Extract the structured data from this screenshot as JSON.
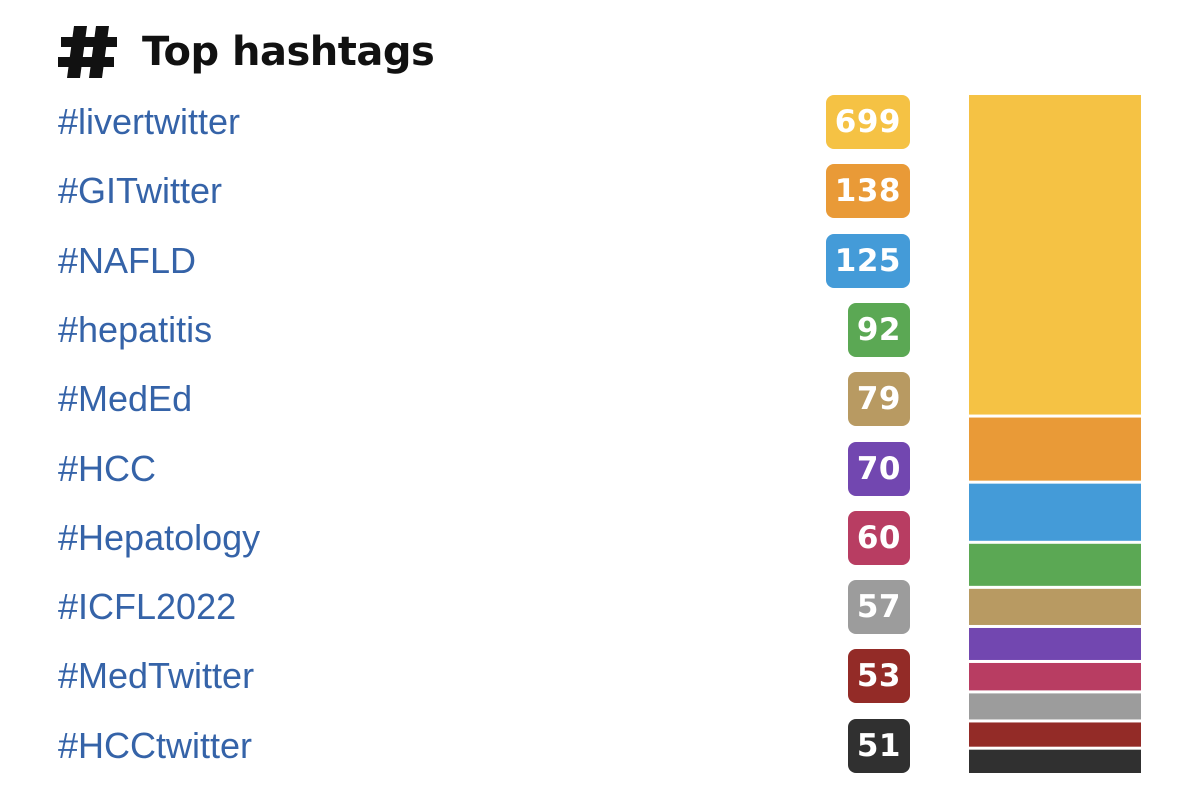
{
  "header": {
    "title": "Top hashtags",
    "icon": "hash-icon"
  },
  "chart_data": {
    "type": "bar",
    "stacked": true,
    "categories": [
      "#livertwitter",
      "#GITwitter",
      "#NAFLD",
      "#hepatitis",
      "#MedEd",
      "#HCC",
      "#Hepatology",
      "#ICFL2022",
      "#MedTwitter",
      "#HCCtwitter"
    ],
    "values": [
      699,
      138,
      125,
      92,
      79,
      70,
      60,
      57,
      53,
      51
    ],
    "labels": [
      "699",
      "138",
      "125",
      "92",
      "79",
      "70",
      "60",
      "57",
      "53",
      "51"
    ],
    "colors": [
      "#f5c244",
      "#e99a37",
      "#449bd8",
      "#5ba854",
      "#b89a62",
      "#7247b0",
      "#b83d62",
      "#9c9c9c",
      "#932b27",
      "#303030"
    ],
    "title": "Top hashtags"
  }
}
